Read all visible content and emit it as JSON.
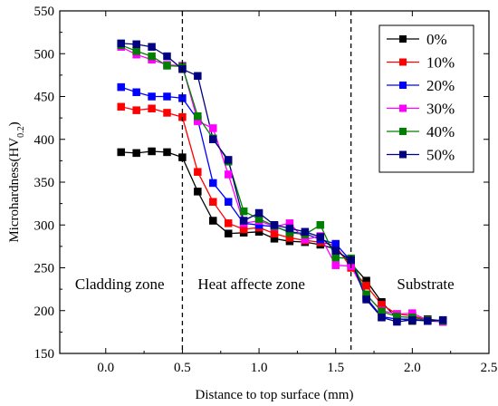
{
  "chart_data": {
    "type": "line",
    "title": "",
    "xlabel": "Distance to top surface (mm)",
    "ylabel": "Microhardness(HV",
    "ylabel_subscript": "0.2",
    "ylabel_suffix": ")",
    "xlim": [
      -0.3,
      2.5
    ],
    "ylim": [
      150,
      550
    ],
    "xticks": [
      0.0,
      0.5,
      1.0,
      1.5,
      2.0,
      2.5
    ],
    "xtick_labels": [
      "0.0",
      "0.5",
      "1.0",
      "1.5",
      "2.0",
      "2.5"
    ],
    "yticks": [
      150,
      200,
      250,
      300,
      350,
      400,
      450,
      500,
      550
    ],
    "ytick_labels": [
      "150",
      "200",
      "250",
      "300",
      "350",
      "400",
      "450",
      "500",
      "550"
    ],
    "grid": false,
    "legend_position": "top-right",
    "zone_boundaries": [
      0.5,
      1.6
    ],
    "zone_labels": [
      {
        "text": "Cladding zone",
        "x": -0.2,
        "y": 225
      },
      {
        "text": "Heat affecte zone",
        "x": 0.6,
        "y": 225
      },
      {
        "text": "Substrate",
        "x": 1.9,
        "y": 225
      }
    ],
    "x": [
      0.1,
      0.2,
      0.3,
      0.4,
      0.5,
      0.6,
      0.7,
      0.8,
      0.9,
      1.0,
      1.1,
      1.2,
      1.3,
      1.4,
      1.5,
      1.6,
      1.7,
      1.8,
      1.9,
      2.0,
      2.1,
      2.2
    ],
    "series": [
      {
        "name": "0%",
        "color": "#000000",
        "values": [
          385,
          384,
          386,
          385,
          379,
          339,
          305,
          290,
          291,
          292,
          284,
          281,
          280,
          277,
          272,
          255,
          235,
          210,
          191,
          188,
          190,
          188
        ]
      },
      {
        "name": "10%",
        "color": "#ff0000",
        "values": [
          438,
          434,
          436,
          431,
          426,
          362,
          327,
          302,
          295,
          297,
          290,
          285,
          282,
          280,
          276,
          250,
          229,
          207,
          196,
          194,
          189,
          188
        ]
      },
      {
        "name": "20%",
        "color": "#0000ff",
        "values": [
          461,
          455,
          450,
          450,
          448,
          423,
          349,
          327,
          302,
          300,
          298,
          292,
          290,
          283,
          278,
          258,
          215,
          193,
          190,
          190,
          188,
          187
        ]
      },
      {
        "name": "30%",
        "color": "#ff00ff",
        "values": [
          508,
          499,
          493,
          487,
          486,
          421,
          413,
          359,
          302,
          305,
          298,
          302,
          283,
          287,
          253,
          252,
          218,
          200,
          196,
          197,
          189,
          187
        ]
      },
      {
        "name": "40%",
        "color": "#008000",
        "values": [
          510,
          503,
          497,
          486,
          485,
          427,
          401,
          374,
          316,
          307,
          299,
          291,
          289,
          300,
          262,
          261,
          219,
          199,
          193,
          192,
          189,
          188
        ]
      },
      {
        "name": "50%",
        "color": "#000080",
        "values": [
          512,
          511,
          508,
          497,
          482,
          474,
          400,
          376,
          305,
          314,
          300,
          296,
          292,
          286,
          270,
          259,
          213,
          192,
          187,
          189,
          188,
          189
        ]
      }
    ]
  }
}
